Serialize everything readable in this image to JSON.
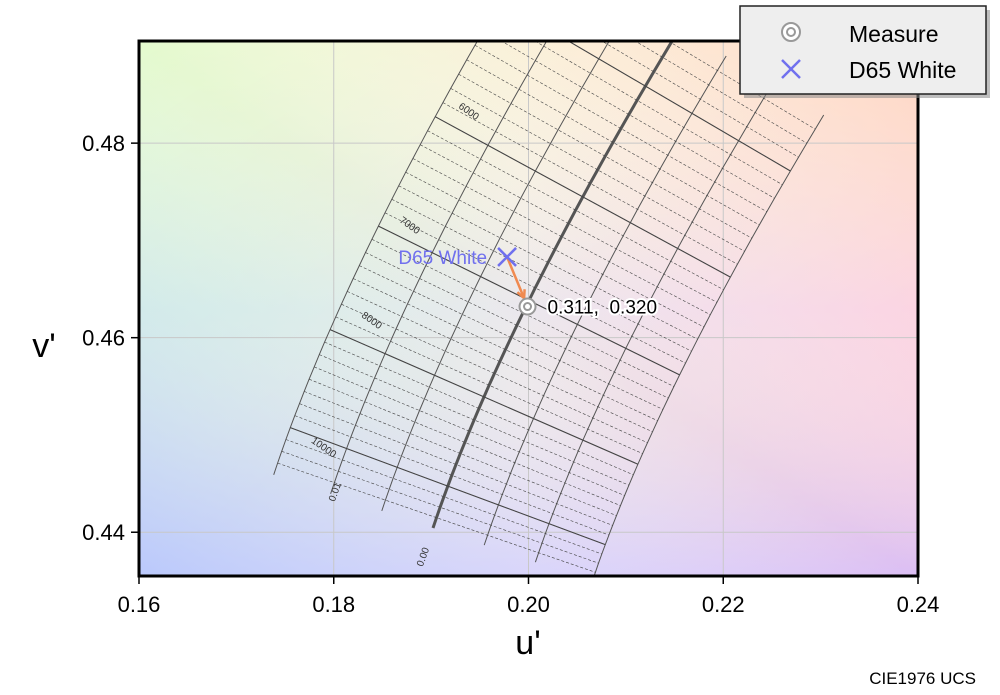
{
  "chart_data": {
    "type": "scatter",
    "xlabel": "u'",
    "ylabel": "v'",
    "xlim": [
      0.16,
      0.24
    ],
    "ylim": [
      0.4355,
      0.4905
    ],
    "xticks": [
      "0.16",
      "0.18",
      "0.20",
      "0.22",
      "0.24"
    ],
    "yticks": [
      "0.44",
      "0.46",
      "0.48"
    ],
    "grid": true,
    "legend": {
      "position": "top-right",
      "entries": [
        "Measure",
        "D65 White"
      ]
    },
    "footer": "CIE1976 UCS",
    "planckian_locus": {
      "cct_labels": [
        "6000",
        "7000",
        "8000",
        "10000"
      ],
      "duv_labels": [
        "0.00",
        "0.01"
      ]
    },
    "series": [
      {
        "name": "Measure",
        "points": [
          {
            "u": 0.1999,
            "v": 0.4632
          }
        ],
        "annotation": "0.311,  0.320"
      },
      {
        "name": "D65 White",
        "points": [
          {
            "u": 0.1978,
            "v": 0.4683
          }
        ],
        "annotation": "D65 White"
      }
    ],
    "colors": {
      "measure": "#999999",
      "d65": "#7070ee",
      "arrow": "#f08a50",
      "locus": "#555555"
    }
  }
}
